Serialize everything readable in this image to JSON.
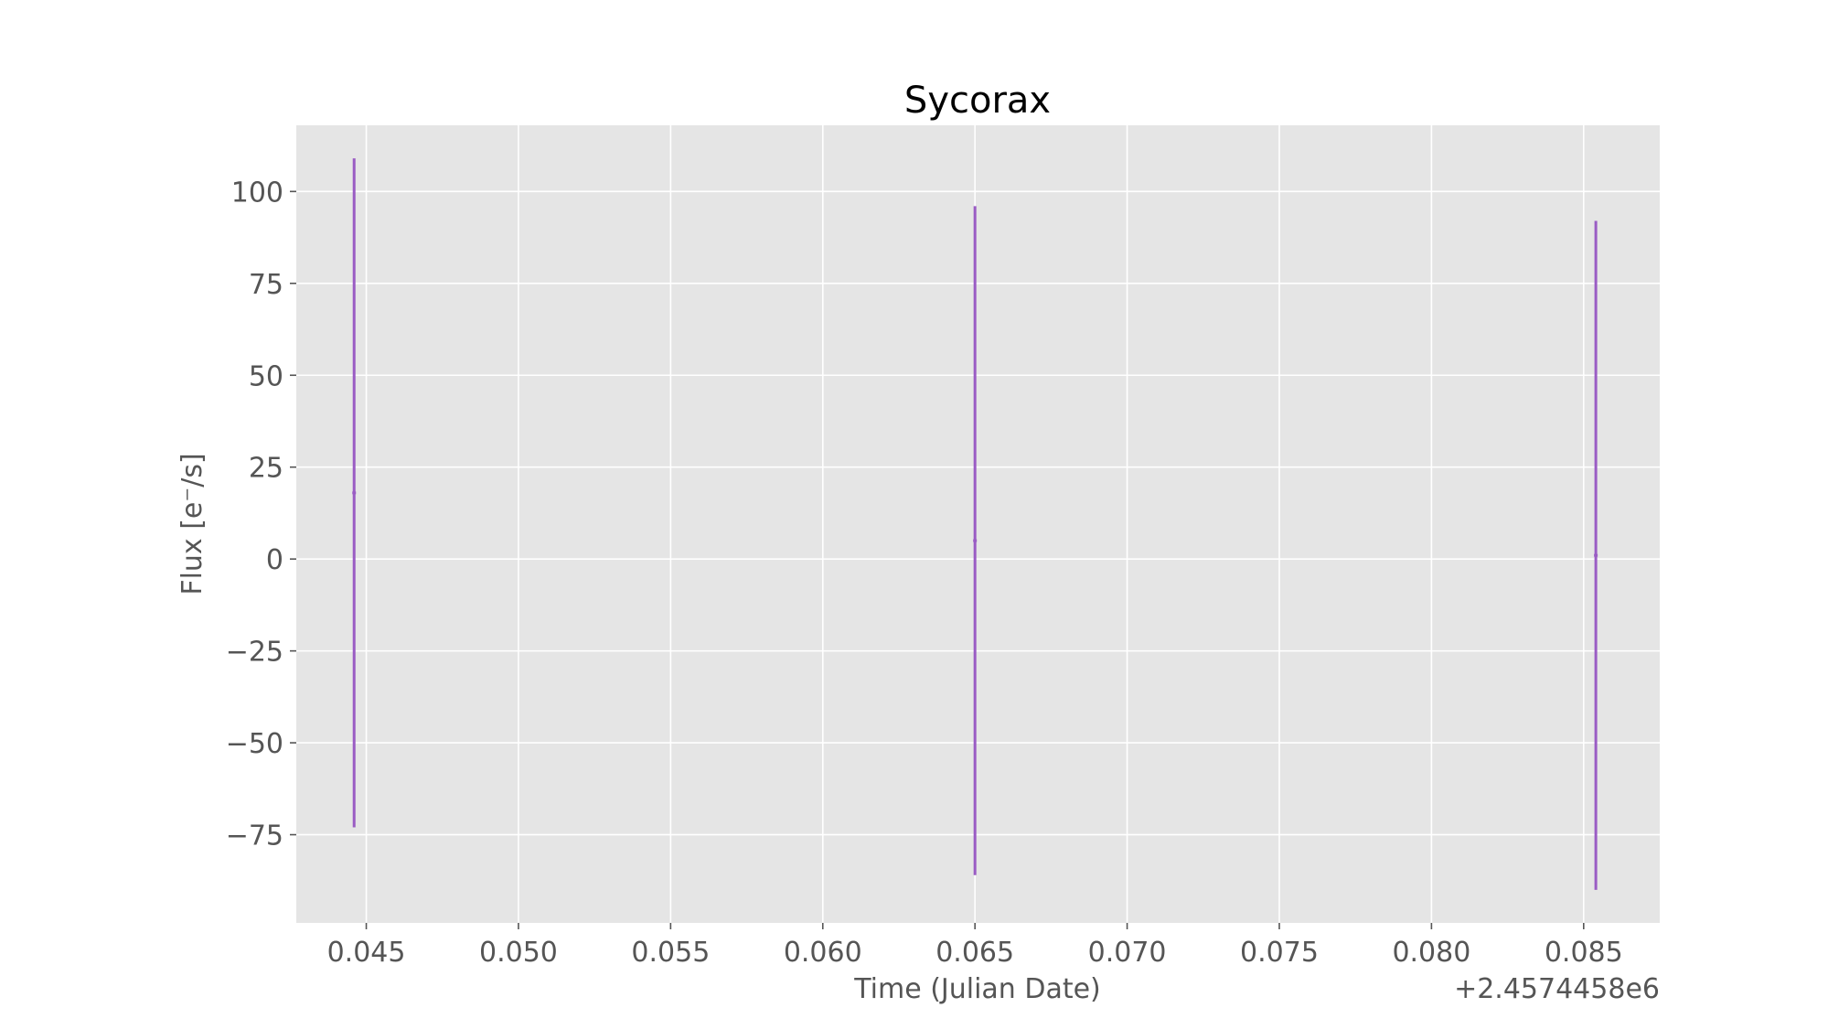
{
  "chart_data": {
    "type": "scatter",
    "title": "Sycorax",
    "xlabel": "Time (Julian Date)",
    "ylabel": "Flux [e⁻/s]",
    "x_offset_label": "+2.4574458e6",
    "xlim": [
      0.0427,
      0.0875
    ],
    "ylim": [
      -99,
      118
    ],
    "x_ticks": [
      0.045,
      0.05,
      0.055,
      0.06,
      0.065,
      0.07,
      0.075,
      0.08,
      0.085
    ],
    "x_tick_labels": [
      "0.045",
      "0.050",
      "0.055",
      "0.060",
      "0.065",
      "0.070",
      "0.075",
      "0.080",
      "0.085"
    ],
    "y_ticks": [
      -75,
      -50,
      -25,
      0,
      25,
      50,
      75,
      100
    ],
    "y_tick_labels": [
      "−75",
      "−50",
      "−25",
      "0",
      "25",
      "50",
      "75",
      "100"
    ],
    "grid": true,
    "background": "#e5e5e5",
    "series": [
      {
        "color": "#9a5cc4",
        "points": [
          {
            "x": 0.0446,
            "y": 18,
            "y_low": -73,
            "y_high": 109
          },
          {
            "x": 0.065,
            "y": 5,
            "y_low": -86,
            "y_high": 96
          },
          {
            "x": 0.0854,
            "y": 1,
            "y_low": -90,
            "y_high": 92
          }
        ]
      }
    ]
  }
}
